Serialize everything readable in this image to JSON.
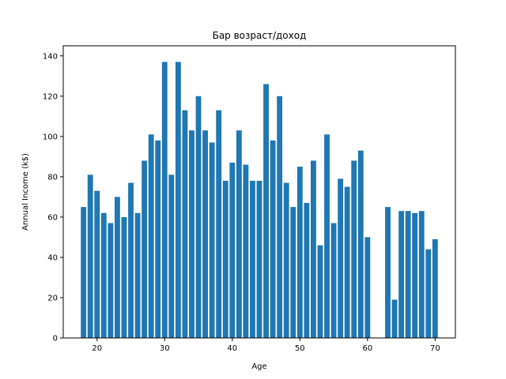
{
  "chart_data": {
    "type": "bar",
    "title": "Бар возраст/доход",
    "xlabel": "Age",
    "ylabel": "Annual Income (k$)",
    "xlim": [
      15,
      73
    ],
    "ylim": [
      0,
      145
    ],
    "xticks": [
      20,
      30,
      40,
      50,
      60,
      70
    ],
    "yticks": [
      0,
      20,
      40,
      60,
      80,
      100,
      120,
      140
    ],
    "bar_color": "#1f77b4",
    "grid": false,
    "x": [
      18,
      19,
      20,
      21,
      22,
      23,
      24,
      25,
      26,
      27,
      28,
      29,
      30,
      31,
      32,
      33,
      34,
      35,
      36,
      37,
      38,
      39,
      40,
      41,
      42,
      43,
      44,
      45,
      46,
      47,
      48,
      49,
      50,
      51,
      52,
      53,
      54,
      55,
      56,
      57,
      58,
      59,
      60,
      63,
      64,
      65,
      66,
      67,
      68,
      69,
      70
    ],
    "values": [
      65,
      81,
      73,
      62,
      57,
      70,
      60,
      77,
      62,
      88,
      101,
      98,
      137,
      81,
      137,
      113,
      103,
      120,
      103,
      97,
      113,
      78,
      87,
      103,
      86,
      78,
      78,
      126,
      98,
      120,
      77,
      65,
      85,
      67,
      88,
      46,
      101,
      57,
      79,
      75,
      88,
      93,
      50,
      65,
      19,
      63,
      63,
      62,
      63,
      44,
      49
    ]
  }
}
